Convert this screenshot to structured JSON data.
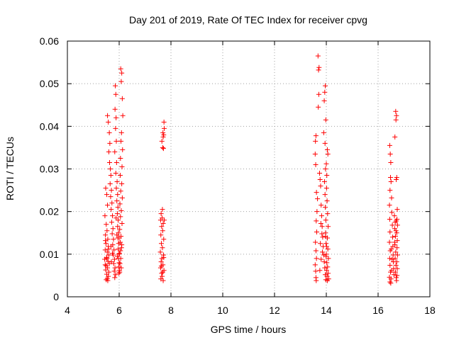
{
  "chart_data": {
    "type": "scatter",
    "title": "Day 201 of 2019, Rate Of TEC Index for receiver cpvg",
    "xlabel": "GPS time / hours",
    "ylabel": "ROTI / TECUs",
    "xlim": [
      4,
      18
    ],
    "ylim": [
      0,
      0.06
    ],
    "xticks": [
      "4",
      "6",
      "8",
      "10",
      "12",
      "14",
      "16",
      "18"
    ],
    "yticks": [
      "0",
      "0.01",
      "0.02",
      "0.03",
      "0.04",
      "0.05",
      "0.06"
    ],
    "grid": true,
    "marker": "+",
    "series": [
      {
        "name": "ROTI",
        "color": "#ff0000",
        "points": [
          [
            5.48,
            0.0255
          ],
          [
            5.52,
            0.024
          ],
          [
            5.55,
            0.0215
          ],
          [
            5.45,
            0.019
          ],
          [
            5.5,
            0.017
          ],
          [
            5.53,
            0.0155
          ],
          [
            5.47,
            0.0145
          ],
          [
            5.56,
            0.0135
          ],
          [
            5.49,
            0.0125
          ],
          [
            5.58,
            0.0118
          ],
          [
            5.46,
            0.011
          ],
          [
            5.54,
            0.0105
          ],
          [
            5.6,
            0.0098
          ],
          [
            5.51,
            0.0092
          ],
          [
            5.44,
            0.0088
          ],
          [
            5.57,
            0.0083
          ],
          [
            5.62,
            0.0078
          ],
          [
            5.5,
            0.0073
          ],
          [
            5.55,
            0.0068
          ],
          [
            5.48,
            0.0063
          ],
          [
            5.6,
            0.0058
          ],
          [
            5.52,
            0.0053
          ],
          [
            5.58,
            0.0048
          ],
          [
            5.54,
            0.0043
          ],
          [
            5.56,
            0.0038
          ],
          [
            5.5,
            0.004
          ],
          [
            5.46,
            0.0075
          ],
          [
            5.53,
            0.009
          ],
          [
            5.59,
            0.0112
          ],
          [
            5.47,
            0.0132
          ],
          [
            5.55,
            0.0425
          ],
          [
            5.58,
            0.041
          ],
          [
            5.62,
            0.0385
          ],
          [
            5.6,
            0.034
          ],
          [
            5.64,
            0.036
          ],
          [
            5.63,
            0.0315
          ],
          [
            5.66,
            0.03
          ],
          [
            5.68,
            0.0285
          ],
          [
            5.65,
            0.0265
          ],
          [
            5.7,
            0.025
          ],
          [
            5.67,
            0.0235
          ],
          [
            5.72,
            0.022
          ],
          [
            5.69,
            0.0205
          ],
          [
            5.74,
            0.019
          ],
          [
            5.71,
            0.0175
          ],
          [
            5.76,
            0.016
          ],
          [
            5.73,
            0.0148
          ],
          [
            5.78,
            0.0135
          ],
          [
            5.75,
            0.0122
          ],
          [
            5.8,
            0.011
          ],
          [
            5.77,
            0.0098
          ],
          [
            5.82,
            0.0088
          ],
          [
            5.79,
            0.0078
          ],
          [
            5.84,
            0.0068
          ],
          [
            5.81,
            0.006
          ],
          [
            5.86,
            0.0052
          ],
          [
            5.83,
            0.0045
          ],
          [
            5.7,
            0.0082
          ],
          [
            5.74,
            0.0102
          ],
          [
            5.68,
            0.0118
          ],
          [
            5.85,
            0.0495
          ],
          [
            5.87,
            0.0475
          ],
          [
            5.84,
            0.044
          ],
          [
            5.88,
            0.042
          ],
          [
            5.86,
            0.0395
          ],
          [
            5.89,
            0.0365
          ],
          [
            5.83,
            0.034
          ],
          [
            5.9,
            0.0315
          ],
          [
            5.87,
            0.029
          ],
          [
            5.92,
            0.027
          ],
          [
            5.89,
            0.0255
          ],
          [
            5.94,
            0.024
          ],
          [
            5.91,
            0.0225
          ],
          [
            5.95,
            0.021
          ],
          [
            5.93,
            0.0195
          ],
          [
            5.96,
            0.018
          ],
          [
            5.94,
            0.0165
          ],
          [
            5.97,
            0.015
          ],
          [
            5.95,
            0.0138
          ],
          [
            5.98,
            0.0125
          ],
          [
            5.96,
            0.0112
          ],
          [
            5.99,
            0.01
          ],
          [
            5.97,
            0.009
          ],
          [
            6.0,
            0.008
          ],
          [
            5.98,
            0.007
          ],
          [
            6.01,
            0.0062
          ],
          [
            5.99,
            0.0055
          ],
          [
            5.93,
            0.0095
          ],
          [
            5.91,
            0.0145
          ],
          [
            5.88,
            0.0185
          ],
          [
            6.06,
            0.0535
          ],
          [
            6.1,
            0.0525
          ],
          [
            6.08,
            0.0505
          ],
          [
            6.12,
            0.0465
          ],
          [
            6.14,
            0.0425
          ],
          [
            6.09,
            0.0385
          ],
          [
            6.07,
            0.0365
          ],
          [
            6.13,
            0.0345
          ],
          [
            6.05,
            0.0325
          ],
          [
            6.11,
            0.0305
          ],
          [
            6.04,
            0.0285
          ],
          [
            6.1,
            0.0265
          ],
          [
            6.06,
            0.0248
          ],
          [
            6.12,
            0.0232
          ],
          [
            6.03,
            0.0218
          ],
          [
            6.08,
            0.0202
          ],
          [
            6.05,
            0.0188
          ],
          [
            6.11,
            0.0172
          ],
          [
            6.02,
            0.0158
          ],
          [
            6.07,
            0.0142
          ],
          [
            6.04,
            0.0128
          ],
          [
            6.09,
            0.0115
          ],
          [
            6.01,
            0.0102
          ],
          [
            6.06,
            0.009
          ],
          [
            6.03,
            0.0078
          ],
          [
            6.08,
            0.0068
          ],
          [
            6.02,
            0.0058
          ],
          [
            6.05,
            0.0108
          ],
          [
            6.1,
            0.0122
          ],
          [
            6.0,
            0.0138
          ],
          [
            7.62,
            0.0195
          ],
          [
            7.66,
            0.0185
          ],
          [
            7.6,
            0.018
          ],
          [
            7.7,
            0.0172
          ],
          [
            7.64,
            0.0165
          ],
          [
            7.68,
            0.0155
          ],
          [
            7.61,
            0.0145
          ],
          [
            7.72,
            0.0135
          ],
          [
            7.63,
            0.0125
          ],
          [
            7.67,
            0.0115
          ],
          [
            7.59,
            0.0105
          ],
          [
            7.71,
            0.0098
          ],
          [
            7.65,
            0.009
          ],
          [
            7.62,
            0.0082
          ],
          [
            7.69,
            0.0075
          ],
          [
            7.6,
            0.0068
          ],
          [
            7.73,
            0.0062
          ],
          [
            7.64,
            0.0055
          ],
          [
            7.66,
            0.0048
          ],
          [
            7.61,
            0.0042
          ],
          [
            7.7,
            0.0038
          ],
          [
            7.68,
            0.0058
          ],
          [
            7.63,
            0.0072
          ],
          [
            7.72,
            0.0092
          ],
          [
            7.67,
            0.0205
          ],
          [
            7.74,
            0.018
          ],
          [
            7.65,
            0.0365
          ],
          [
            7.7,
            0.0375
          ],
          [
            7.72,
            0.038
          ],
          [
            7.68,
            0.035
          ],
          [
            7.71,
            0.0348
          ],
          [
            7.74,
            0.0395
          ],
          [
            7.73,
            0.041
          ],
          [
            7.69,
            0.0385
          ],
          [
            13.68,
            0.0565
          ],
          [
            13.72,
            0.0538
          ],
          [
            13.7,
            0.0532
          ],
          [
            13.71,
            0.0475
          ],
          [
            13.69,
            0.0445
          ],
          [
            13.6,
            0.0378
          ],
          [
            13.58,
            0.0365
          ],
          [
            13.57,
            0.0335
          ],
          [
            13.59,
            0.031
          ],
          [
            13.74,
            0.029
          ],
          [
            13.76,
            0.0275
          ],
          [
            13.78,
            0.026
          ],
          [
            13.62,
            0.0245
          ],
          [
            13.66,
            0.023
          ],
          [
            13.8,
            0.0215
          ],
          [
            13.64,
            0.02
          ],
          [
            13.82,
            0.019
          ],
          [
            13.61,
            0.0178
          ],
          [
            13.84,
            0.0165
          ],
          [
            13.63,
            0.0152
          ],
          [
            13.86,
            0.014
          ],
          [
            13.58,
            0.0128
          ],
          [
            13.88,
            0.0118
          ],
          [
            13.6,
            0.0108
          ],
          [
            13.9,
            0.0098
          ],
          [
            13.62,
            0.009
          ],
          [
            13.92,
            0.0082
          ],
          [
            13.57,
            0.0075
          ],
          [
            13.94,
            0.0068
          ],
          [
            13.59,
            0.006
          ],
          [
            13.96,
            0.0052
          ],
          [
            13.6,
            0.0045
          ],
          [
            13.98,
            0.004
          ],
          [
            13.61,
            0.0038
          ],
          [
            13.75,
            0.0062
          ],
          [
            13.8,
            0.0088
          ],
          [
            13.85,
            0.0105
          ],
          [
            13.77,
            0.0125
          ],
          [
            13.83,
            0.0148
          ],
          [
            13.79,
            0.0172
          ],
          [
            13.96,
            0.0495
          ],
          [
            13.94,
            0.048
          ],
          [
            13.92,
            0.046
          ],
          [
            13.98,
            0.0415
          ],
          [
            13.9,
            0.0385
          ],
          [
            13.95,
            0.036
          ],
          [
            14.04,
            0.0345
          ],
          [
            14.06,
            0.0335
          ],
          [
            14.0,
            0.0312
          ],
          [
            13.97,
            0.03
          ],
          [
            14.02,
            0.0285
          ],
          [
            13.93,
            0.027
          ],
          [
            14.01,
            0.0255
          ],
          [
            13.95,
            0.024
          ],
          [
            14.03,
            0.0225
          ],
          [
            13.96,
            0.021
          ],
          [
            14.05,
            0.0195
          ],
          [
            13.98,
            0.018
          ],
          [
            14.07,
            0.0165
          ],
          [
            13.97,
            0.015
          ],
          [
            14.04,
            0.0138
          ],
          [
            13.99,
            0.0125
          ],
          [
            14.06,
            0.0112
          ],
          [
            14.0,
            0.01
          ],
          [
            14.08,
            0.009
          ],
          [
            14.02,
            0.008
          ],
          [
            14.05,
            0.007
          ],
          [
            14.01,
            0.0062
          ],
          [
            14.07,
            0.0055
          ],
          [
            14.03,
            0.0048
          ],
          [
            14.09,
            0.0042
          ],
          [
            14.04,
            0.0038
          ],
          [
            13.99,
            0.0095
          ],
          [
            14.01,
            0.0118
          ],
          [
            13.97,
            0.0142
          ],
          [
            16.45,
            0.0355
          ],
          [
            16.47,
            0.0335
          ],
          [
            16.49,
            0.0315
          ],
          [
            16.48,
            0.028
          ],
          [
            16.5,
            0.027
          ],
          [
            16.46,
            0.025
          ],
          [
            16.52,
            0.0232
          ],
          [
            16.44,
            0.0215
          ],
          [
            16.53,
            0.0198
          ],
          [
            16.45,
            0.0182
          ],
          [
            16.55,
            0.0168
          ],
          [
            16.46,
            0.0152
          ],
          [
            16.56,
            0.014
          ],
          [
            16.44,
            0.0128
          ],
          [
            16.57,
            0.0118
          ],
          [
            16.47,
            0.0108
          ],
          [
            16.58,
            0.0098
          ],
          [
            16.45,
            0.009
          ],
          [
            16.59,
            0.0082
          ],
          [
            16.46,
            0.0074
          ],
          [
            16.6,
            0.0066
          ],
          [
            16.48,
            0.0058
          ],
          [
            16.61,
            0.0052
          ],
          [
            16.44,
            0.0046
          ],
          [
            16.5,
            0.0042
          ],
          [
            16.46,
            0.0035
          ],
          [
            16.49,
            0.0032
          ],
          [
            16.52,
            0.0062
          ],
          [
            16.54,
            0.0088
          ],
          [
            16.51,
            0.0112
          ],
          [
            16.68,
            0.0435
          ],
          [
            16.71,
            0.0425
          ],
          [
            16.69,
            0.0415
          ],
          [
            16.65,
            0.0375
          ],
          [
            16.72,
            0.028
          ],
          [
            16.7,
            0.0275
          ],
          [
            16.74,
            0.0205
          ],
          [
            16.63,
            0.019
          ],
          [
            16.73,
            0.0182
          ],
          [
            16.66,
            0.0175
          ],
          [
            16.75,
            0.0168
          ],
          [
            16.64,
            0.016
          ],
          [
            16.72,
            0.015
          ],
          [
            16.67,
            0.0142
          ],
          [
            16.74,
            0.0132
          ],
          [
            16.65,
            0.0122
          ],
          [
            16.73,
            0.0115
          ],
          [
            16.68,
            0.0105
          ],
          [
            16.75,
            0.0098
          ],
          [
            16.66,
            0.009
          ],
          [
            16.72,
            0.0082
          ],
          [
            16.69,
            0.0074
          ],
          [
            16.74,
            0.0066
          ],
          [
            16.67,
            0.0058
          ],
          [
            16.73,
            0.005
          ],
          [
            16.7,
            0.0045
          ],
          [
            16.71,
            0.0038
          ],
          [
            16.64,
            0.0128
          ],
          [
            16.69,
            0.0155
          ],
          [
            16.7,
            0.0178
          ]
        ]
      }
    ]
  }
}
